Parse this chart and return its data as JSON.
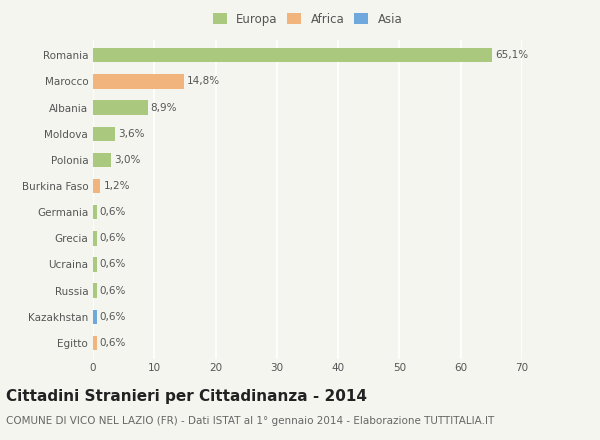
{
  "categories": [
    "Romania",
    "Marocco",
    "Albania",
    "Moldova",
    "Polonia",
    "Burkina Faso",
    "Germania",
    "Grecia",
    "Ucraina",
    "Russia",
    "Kazakhstan",
    "Egitto"
  ],
  "values": [
    65.1,
    14.8,
    8.9,
    3.6,
    3.0,
    1.2,
    0.6,
    0.6,
    0.6,
    0.6,
    0.6,
    0.6
  ],
  "labels": [
    "65,1%",
    "14,8%",
    "8,9%",
    "3,6%",
    "3,0%",
    "1,2%",
    "0,6%",
    "0,6%",
    "0,6%",
    "0,6%",
    "0,6%",
    "0,6%"
  ],
  "colors": [
    "#aac97e",
    "#f0b47c",
    "#aac97e",
    "#aac97e",
    "#aac97e",
    "#f0b47c",
    "#aac97e",
    "#aac97e",
    "#aac97e",
    "#aac97e",
    "#6fa8dc",
    "#f0b47c"
  ],
  "legend_labels": [
    "Europa",
    "Africa",
    "Asia"
  ],
  "legend_colors": [
    "#aac97e",
    "#f0b47c",
    "#6fa8dc"
  ],
  "title": "Cittadini Stranieri per Cittadinanza - 2014",
  "subtitle": "COMUNE DI VICO NEL LAZIO (FR) - Dati ISTAT al 1° gennaio 2014 - Elaborazione TUTTITALIA.IT",
  "xlim": [
    0,
    70
  ],
  "xticks": [
    0,
    10,
    20,
    30,
    40,
    50,
    60,
    70
  ],
  "bg_color": "#f5f5f0",
  "grid_color": "#ffffff",
  "bar_height": 0.55,
  "title_fontsize": 11,
  "subtitle_fontsize": 7.5,
  "label_fontsize": 7.5,
  "tick_fontsize": 7.5,
  "legend_fontsize": 8.5
}
